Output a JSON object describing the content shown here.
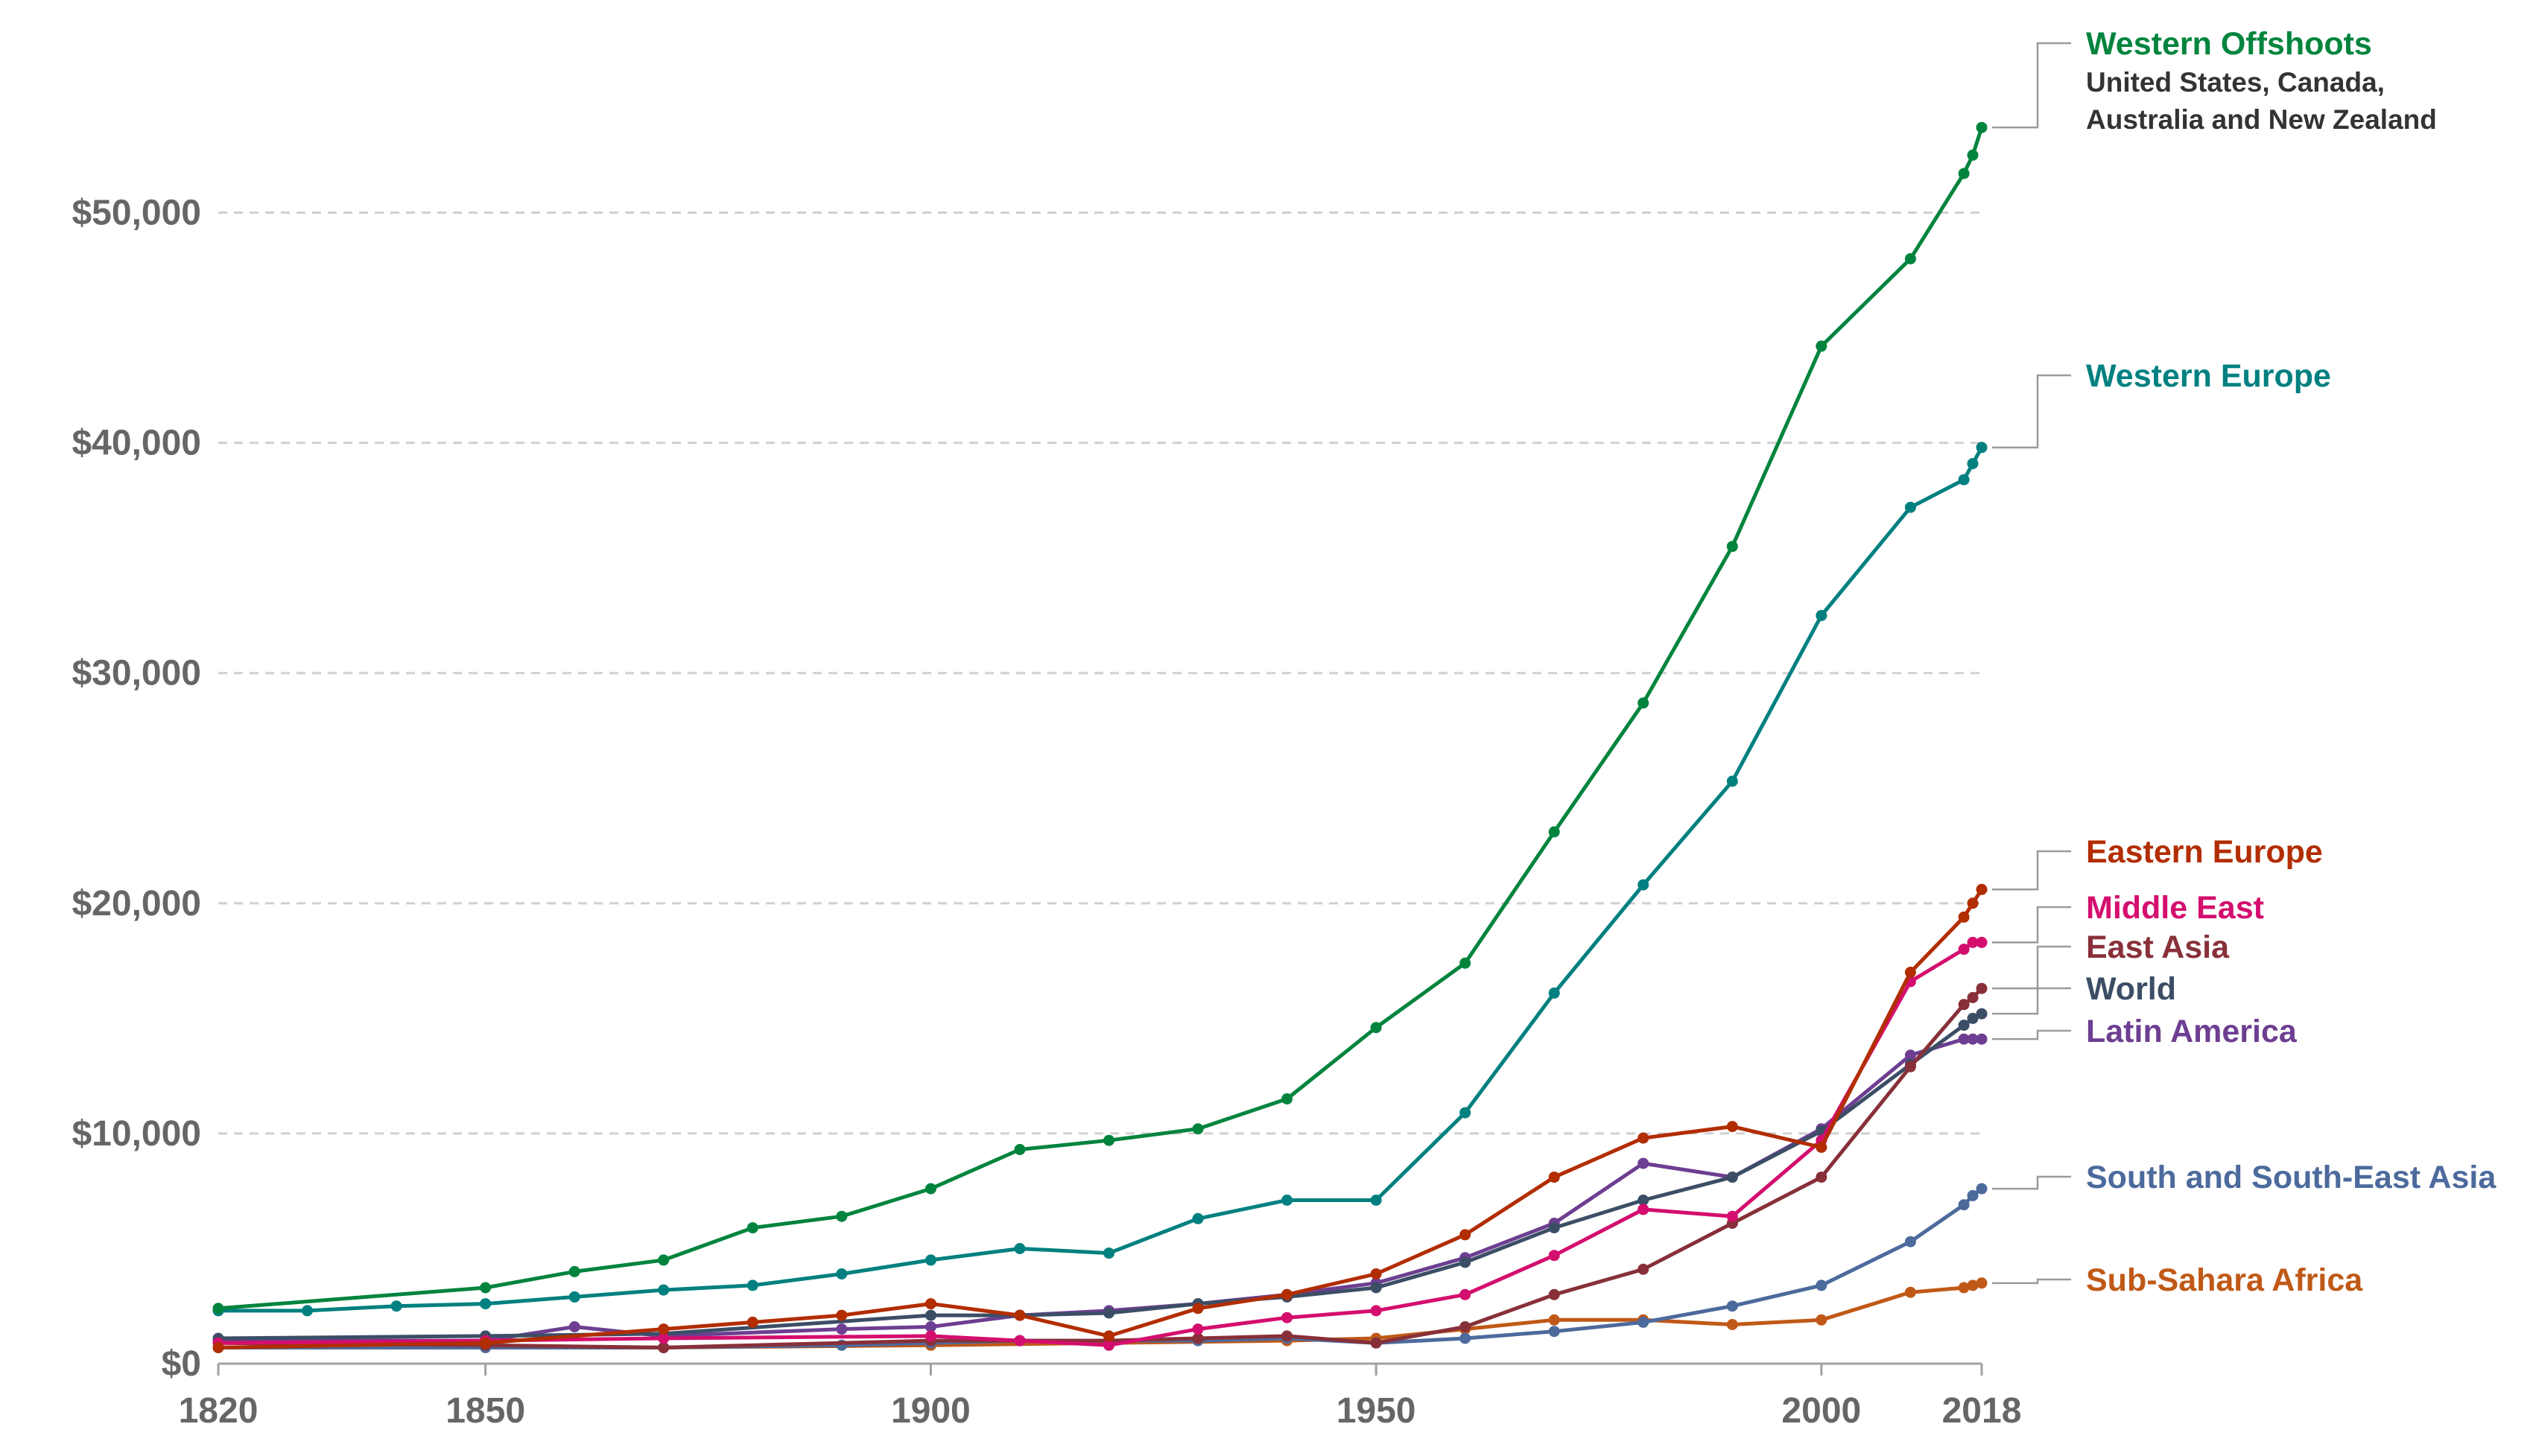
{
  "chart_data": {
    "type": "line",
    "title": "",
    "xlabel": "",
    "ylabel": "",
    "xlim": [
      1820,
      2018
    ],
    "ylim": [
      0,
      55000
    ],
    "grid": true,
    "legend": "right-end labels",
    "x_ticks": [
      "1820",
      "1850",
      "1900",
      "1950",
      "2000",
      "2018"
    ],
    "y_ticks": [
      {
        "value": 0,
        "label": "$0"
      },
      {
        "value": 10000,
        "label": "$10,000"
      },
      {
        "value": 20000,
        "label": "$20,000"
      },
      {
        "value": 30000,
        "label": "$30,000"
      },
      {
        "value": 40000,
        "label": "$40,000"
      },
      {
        "value": 50000,
        "label": "$50,000"
      }
    ],
    "series": [
      {
        "name": "Western Offshoots",
        "subtitle_lines": [
          "United States, Canada,",
          "Australia and New Zealand"
        ],
        "color": "#00843d",
        "x": [
          1820,
          1850,
          1860,
          1870,
          1880,
          1890,
          1900,
          1910,
          1920,
          1930,
          1940,
          1950,
          1960,
          1970,
          1980,
          1990,
          2000,
          2010,
          2016,
          2017,
          2018
        ],
        "y": [
          2400,
          3300,
          4000,
          4500,
          5900,
          6400,
          7600,
          9300,
          9700,
          10200,
          11500,
          14600,
          17400,
          23100,
          28700,
          35500,
          44200,
          48000,
          51700,
          52500,
          53700
        ]
      },
      {
        "name": "Western Europe",
        "color": "#008080",
        "x": [
          1820,
          1830,
          1840,
          1850,
          1860,
          1870,
          1880,
          1890,
          1900,
          1910,
          1920,
          1930,
          1940,
          1950,
          1960,
          1970,
          1980,
          1990,
          2000,
          2010,
          2016,
          2017,
          2018
        ],
        "y": [
          2300,
          2300,
          2500,
          2600,
          2900,
          3200,
          3400,
          3900,
          4500,
          5000,
          4800,
          6300,
          7100,
          7100,
          10900,
          16100,
          20800,
          25300,
          32500,
          37200,
          38400,
          39100,
          39800
        ]
      },
      {
        "name": "Eastern Europe",
        "color": "#b22d00",
        "x": [
          1820,
          1850,
          1870,
          1880,
          1890,
          1900,
          1910,
          1920,
          1930,
          1940,
          1950,
          1960,
          1970,
          1980,
          1990,
          2000,
          2010,
          2016,
          2017,
          2018
        ],
        "y": [
          700,
          900,
          1500,
          1800,
          2100,
          2600,
          2100,
          1200,
          2400,
          3000,
          3900,
          5600,
          8100,
          9800,
          10300,
          9400,
          17000,
          19400,
          20000,
          20600
        ]
      },
      {
        "name": "Middle East",
        "color": "#d40e6e",
        "x": [
          1820,
          1850,
          1870,
          1900,
          1910,
          1920,
          1930,
          1940,
          1950,
          1960,
          1970,
          1980,
          1990,
          2000,
          2010,
          2016,
          2017,
          2018
        ],
        "y": [
          900,
          1000,
          1100,
          1200,
          1000,
          800,
          1500,
          2000,
          2300,
          3000,
          4700,
          6700,
          6400,
          9700,
          16600,
          18000,
          18300,
          18300
        ]
      },
      {
        "name": "East Asia",
        "color": "#883039",
        "x": [
          1820,
          1850,
          1870,
          1900,
          1910,
          1920,
          1930,
          1940,
          1950,
          1960,
          1970,
          1980,
          1990,
          2000,
          2010,
          2016,
          2017,
          2018
        ],
        "y": [
          900,
          800,
          700,
          1000,
          1000,
          1000,
          1100,
          1200,
          900,
          1600,
          3000,
          4100,
          6100,
          8100,
          12900,
          15600,
          15900,
          16300
        ]
      },
      {
        "name": "World",
        "color": "#3c4e66",
        "x": [
          1820,
          1850,
          1870,
          1900,
          1910,
          1920,
          1930,
          1940,
          1950,
          1960,
          1970,
          1980,
          1990,
          2000,
          2010,
          2016,
          2017,
          2018
        ],
        "y": [
          1100,
          1200,
          1300,
          2100,
          2100,
          2200,
          2600,
          2900,
          3300,
          4400,
          5900,
          7100,
          8100,
          10100,
          13000,
          14700,
          15000,
          15200
        ]
      },
      {
        "name": "Latin America",
        "color": "#6d3e91",
        "x": [
          1820,
          1850,
          1860,
          1870,
          1890,
          1900,
          1910,
          1920,
          1930,
          1940,
          1950,
          1960,
          1970,
          1980,
          1990,
          2000,
          2010,
          2016,
          2017,
          2018
        ],
        "y": [
          1000,
          1000,
          1600,
          1200,
          1500,
          1600,
          2100,
          2300,
          2600,
          3000,
          3500,
          4600,
          6100,
          8700,
          8100,
          10200,
          13400,
          14100,
          14100,
          14100
        ]
      },
      {
        "name": "South and South-East Asia",
        "color": "#4c6a9c",
        "x": [
          1820,
          1850,
          1870,
          1890,
          1900,
          1910,
          1920,
          1930,
          1940,
          1950,
          1960,
          1970,
          1980,
          1990,
          2000,
          2010,
          2016,
          2017,
          2018
        ],
        "y": [
          700,
          700,
          700,
          800,
          900,
          1000,
          1000,
          1000,
          1100,
          900,
          1100,
          1400,
          1800,
          2500,
          3400,
          5300,
          6900,
          7300,
          7600
        ]
      },
      {
        "name": "Sub-Sahara Africa",
        "color": "#c05917",
        "x": [
          1820,
          1850,
          1870,
          1900,
          1920,
          1940,
          1950,
          1960,
          1970,
          1980,
          1990,
          2000,
          2010,
          2016,
          2017,
          2018
        ],
        "y": [
          700,
          700,
          700,
          800,
          900,
          1000,
          1100,
          1500,
          1900,
          1900,
          1700,
          1900,
          3100,
          3300,
          3400,
          3500
        ]
      }
    ]
  }
}
